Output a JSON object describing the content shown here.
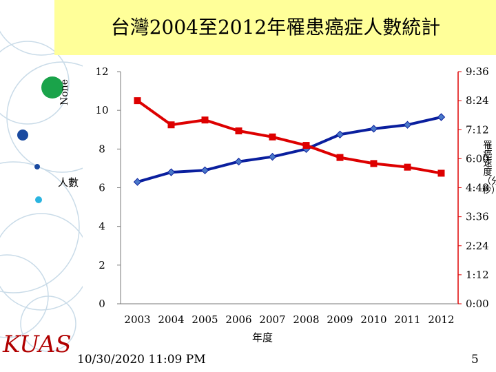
{
  "slide": {
    "title": "台灣2004至2012年罹患癌症人數統計",
    "side_label": "None",
    "footer_date": "10/30/2020 11:09 PM",
    "page_number": "5",
    "logo": "KUAS"
  },
  "chart_data": {
    "type": "line",
    "title": "台灣2004至2012年罹患癌症人數統計",
    "xlabel": "年度",
    "ylabel_left": "人數",
    "ylabel_right": "罹癌速度（分：秒）",
    "categories": [
      "2003",
      "2004",
      "2005",
      "2006",
      "2007",
      "2008",
      "2009",
      "2010",
      "2011",
      "2012"
    ],
    "left_ticks": [
      "0",
      "2",
      "4",
      "6",
      "8",
      "10",
      "12"
    ],
    "right_ticks": [
      "0:00",
      "1:12",
      "2:24",
      "3:36",
      "4:48",
      "6:00",
      "7:12",
      "8:24",
      "9:36"
    ],
    "ylim_left": [
      0,
      12
    ],
    "ylim_right_minutes": [
      0,
      9.6
    ],
    "series": [
      {
        "name": "人數",
        "axis": "left",
        "color": "#0a1f9e",
        "marker": "diamond",
        "values": [
          6.3,
          6.8,
          6.9,
          7.35,
          7.6,
          8.0,
          8.75,
          9.05,
          9.25,
          9.65
        ]
      },
      {
        "name": "罹癌速度",
        "axis": "right",
        "color": "#dd0000",
        "marker": "square",
        "values_minutes": [
          8.4,
          7.4,
          7.6,
          7.15,
          6.9,
          6.55,
          6.05,
          5.8,
          5.65,
          5.4
        ]
      }
    ],
    "grid": false
  }
}
